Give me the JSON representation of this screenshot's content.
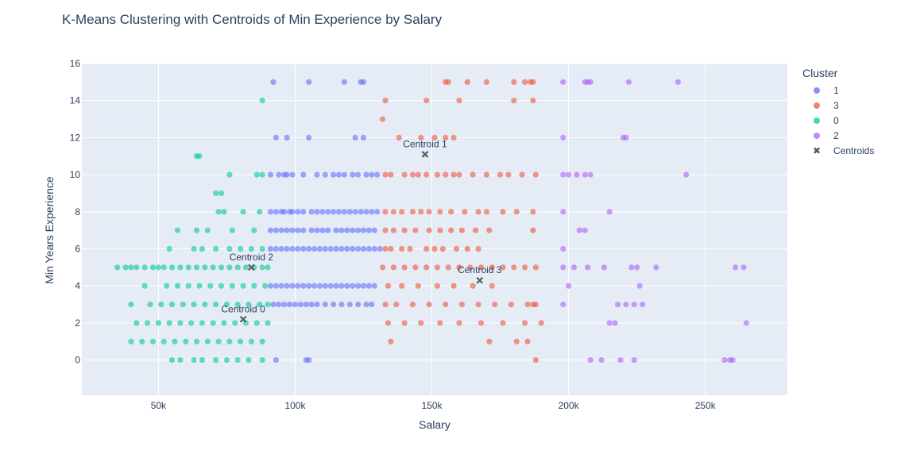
{
  "chart_data": {
    "type": "scatter",
    "title": "K-Means Clustering with Centroids of Min Experience by Salary",
    "xlabel": "Salary",
    "ylabel": "Min Years Experience",
    "xlim": [
      22000,
      280000
    ],
    "ylim": [
      -1.9,
      16
    ],
    "xticks": [
      50000,
      100000,
      150000,
      200000,
      250000
    ],
    "xtick_labels": [
      "50k",
      "100k",
      "150k",
      "200k",
      "250k"
    ],
    "yticks": [
      0,
      2,
      4,
      6,
      8,
      10,
      12,
      14,
      16
    ],
    "ytick_labels": [
      "0",
      "2",
      "4",
      "6",
      "8",
      "10",
      "12",
      "14",
      "16"
    ],
    "grid": true,
    "legend_title": "Cluster",
    "legend_position": "right",
    "series": [
      {
        "name": "1",
        "color": "#636efa",
        "x": [
          92000,
          105000,
          118000,
          124000,
          125000,
          93000,
          97000,
          105000,
          122000,
          125000,
          91000,
          94000,
          96000,
          97000,
          99000,
          103000,
          108000,
          111000,
          114000,
          116000,
          118000,
          121000,
          123000,
          126000,
          128000,
          130000,
          91000,
          93000,
          95000,
          96000,
          98000,
          99000,
          101000,
          103000,
          106000,
          108000,
          110000,
          112000,
          114000,
          116000,
          118000,
          120000,
          122000,
          124000,
          126000,
          128000,
          130000,
          91000,
          93000,
          95000,
          97000,
          99000,
          101000,
          103000,
          106000,
          108000,
          110000,
          112000,
          115000,
          117000,
          119000,
          121000,
          123000,
          125000,
          127000,
          129000,
          91000,
          93000,
          95000,
          97000,
          99000,
          101000,
          103000,
          105000,
          107000,
          109000,
          111000,
          113000,
          115000,
          117000,
          119000,
          121000,
          123000,
          125000,
          127000,
          129000,
          131000,
          91000,
          93000,
          95000,
          97000,
          99000,
          101000,
          103000,
          105000,
          107000,
          109000,
          111000,
          113000,
          115000,
          117000,
          119000,
          121000,
          123000,
          125000,
          127000,
          129000,
          92000,
          94000,
          96000,
          98000,
          100000,
          102000,
          104000,
          106000,
          108000,
          111000,
          114000,
          117000,
          120000,
          123000,
          126000,
          128000,
          93000,
          104000,
          105000
        ],
        "y": [
          15,
          15,
          15,
          15,
          15,
          12,
          12,
          12,
          12,
          12,
          10,
          10,
          10,
          10,
          10,
          10,
          10,
          10,
          10,
          10,
          10,
          10,
          10,
          10,
          10,
          10,
          8,
          8,
          8,
          8,
          8,
          8,
          8,
          8,
          8,
          8,
          8,
          8,
          8,
          8,
          8,
          8,
          8,
          8,
          8,
          8,
          8,
          7,
          7,
          7,
          7,
          7,
          7,
          7,
          7,
          7,
          7,
          7,
          7,
          7,
          7,
          7,
          7,
          7,
          7,
          7,
          6,
          6,
          6,
          6,
          6,
          6,
          6,
          6,
          6,
          6,
          6,
          6,
          6,
          6,
          6,
          6,
          6,
          6,
          6,
          6,
          6,
          4,
          4,
          4,
          4,
          4,
          4,
          4,
          4,
          4,
          4,
          4,
          4,
          4,
          4,
          4,
          4,
          4,
          4,
          4,
          4,
          3,
          3,
          3,
          3,
          3,
          3,
          3,
          3,
          3,
          3,
          3,
          3,
          3,
          3,
          3,
          3,
          0,
          0,
          0
        ]
      },
      {
        "name": "3",
        "color": "#ef553b",
        "x": [
          155000,
          156000,
          163000,
          170000,
          180000,
          184000,
          186000,
          187000,
          133000,
          148000,
          160000,
          180000,
          187000,
          132000,
          138000,
          146000,
          151000,
          155000,
          158000,
          133000,
          135000,
          140000,
          143000,
          145000,
          148000,
          152000,
          155000,
          158000,
          160000,
          165000,
          170000,
          175000,
          178000,
          183000,
          188000,
          133000,
          136000,
          139000,
          143000,
          146000,
          149000,
          153000,
          157000,
          162000,
          167000,
          170000,
          176000,
          181000,
          187000,
          133000,
          136000,
          140000,
          144000,
          149000,
          153000,
          157000,
          161000,
          166000,
          171000,
          187000,
          133000,
          135000,
          139000,
          142000,
          148000,
          151000,
          154000,
          159000,
          163000,
          167000,
          132000,
          136000,
          140000,
          144000,
          148000,
          152000,
          156000,
          160000,
          164000,
          168000,
          172000,
          176000,
          180000,
          184000,
          188000,
          134000,
          139000,
          145000,
          152000,
          158000,
          165000,
          172000,
          133000,
          137000,
          143000,
          149000,
          155000,
          161000,
          167000,
          173000,
          179000,
          185000,
          187000,
          188000,
          134000,
          140000,
          146000,
          153000,
          160000,
          168000,
          176000,
          184000,
          190000,
          135000,
          171000,
          181000,
          185000,
          188000
        ],
        "y": [
          15,
          15,
          15,
          15,
          15,
          15,
          15,
          15,
          14,
          14,
          14,
          14,
          14,
          13,
          12,
          12,
          12,
          12,
          12,
          10,
          10,
          10,
          10,
          10,
          10,
          10,
          10,
          10,
          10,
          10,
          10,
          10,
          10,
          10,
          10,
          8,
          8,
          8,
          8,
          8,
          8,
          8,
          8,
          8,
          8,
          8,
          8,
          8,
          8,
          7,
          7,
          7,
          7,
          7,
          7,
          7,
          7,
          7,
          7,
          7,
          6,
          6,
          6,
          6,
          6,
          6,
          6,
          6,
          6,
          6,
          5,
          5,
          5,
          5,
          5,
          5,
          5,
          5,
          5,
          5,
          5,
          5,
          5,
          5,
          5,
          4,
          4,
          4,
          4,
          4,
          4,
          4,
          3,
          3,
          3,
          3,
          3,
          3,
          3,
          3,
          3,
          3,
          3,
          3,
          2,
          2,
          2,
          2,
          2,
          2,
          2,
          2,
          2,
          1,
          1,
          1,
          1,
          0
        ]
      },
      {
        "name": "0",
        "color": "#00cc96",
        "x": [
          88000,
          64000,
          65000,
          76000,
          86000,
          88000,
          71000,
          73000,
          72000,
          74000,
          81000,
          87000,
          57000,
          64000,
          68000,
          77000,
          85000,
          54000,
          63000,
          66000,
          71000,
          76000,
          80000,
          84000,
          88000,
          35000,
          38000,
          40000,
          42000,
          45000,
          48000,
          50000,
          52000,
          55000,
          58000,
          61000,
          64000,
          67000,
          70000,
          73000,
          76000,
          79000,
          82000,
          85000,
          88000,
          90000,
          45000,
          53000,
          57000,
          61000,
          65000,
          69000,
          73000,
          77000,
          81000,
          85000,
          89000,
          40000,
          47000,
          51000,
          55000,
          59000,
          63000,
          67000,
          71000,
          75000,
          79000,
          83000,
          87000,
          90000,
          42000,
          46000,
          50000,
          54000,
          58000,
          62000,
          66000,
          70000,
          74000,
          78000,
          82000,
          86000,
          90000,
          40000,
          44000,
          48000,
          52000,
          56000,
          60000,
          64000,
          68000,
          72000,
          76000,
          80000,
          84000,
          88000,
          55000,
          58000,
          63000,
          66000,
          71000,
          75000,
          79000,
          83000,
          88000
        ],
        "y": [
          14,
          11,
          11,
          10,
          10,
          10,
          9,
          9,
          8,
          8,
          8,
          8,
          7,
          7,
          7,
          7,
          7,
          6,
          6,
          6,
          6,
          6,
          6,
          6,
          6,
          5,
          5,
          5,
          5,
          5,
          5,
          5,
          5,
          5,
          5,
          5,
          5,
          5,
          5,
          5,
          5,
          5,
          5,
          5,
          5,
          5,
          4,
          4,
          4,
          4,
          4,
          4,
          4,
          4,
          4,
          4,
          4,
          3,
          3,
          3,
          3,
          3,
          3,
          3,
          3,
          3,
          3,
          3,
          3,
          3,
          2,
          2,
          2,
          2,
          2,
          2,
          2,
          2,
          2,
          2,
          2,
          2,
          2,
          1,
          1,
          1,
          1,
          1,
          1,
          1,
          1,
          1,
          1,
          1,
          1,
          1,
          0,
          0,
          0,
          0,
          0,
          0,
          0,
          0,
          0
        ]
      },
      {
        "name": "2",
        "color": "#ab63fa",
        "x": [
          198000,
          206000,
          207000,
          208000,
          222000,
          240000,
          198000,
          220000,
          221000,
          198000,
          200000,
          203000,
          206000,
          208000,
          243000,
          198000,
          215000,
          204000,
          206000,
          198000,
          198000,
          202000,
          207000,
          213000,
          223000,
          225000,
          232000,
          261000,
          264000,
          200000,
          226000,
          198000,
          218000,
          221000,
          224000,
          227000,
          215000,
          217000,
          265000,
          208000,
          212000,
          219000,
          224000,
          257000,
          259000,
          260000
        ],
        "y": [
          15,
          15,
          15,
          15,
          15,
          15,
          12,
          12,
          12,
          10,
          10,
          10,
          10,
          10,
          10,
          8,
          8,
          7,
          7,
          6,
          5,
          5,
          5,
          5,
          5,
          5,
          5,
          5,
          5,
          4,
          4,
          3,
          3,
          3,
          3,
          3,
          2,
          2,
          2,
          0,
          0,
          0,
          0,
          0,
          0,
          0
        ]
      }
    ],
    "centroids": {
      "name": "Centroids",
      "color": "#5a5a5a",
      "marker": "x",
      "points": [
        {
          "label": "Centroid 0",
          "x": 81000,
          "y": 2.2
        },
        {
          "label": "Centroid 1",
          "x": 147500,
          "y": 11.1
        },
        {
          "label": "Centroid 2",
          "x": 84000,
          "y": 5.0
        },
        {
          "label": "Centroid 3",
          "x": 167500,
          "y": 4.3
        }
      ]
    }
  },
  "legend": {
    "title": "Cluster",
    "items": [
      {
        "label": "1",
        "color": "#636efa",
        "kind": "dot"
      },
      {
        "label": "3",
        "color": "#ef553b",
        "kind": "dot"
      },
      {
        "label": "0",
        "color": "#00cc96",
        "kind": "dot"
      },
      {
        "label": "2",
        "color": "#ab63fa",
        "kind": "dot"
      },
      {
        "label": "Centroids",
        "color": "#5a5a5a",
        "kind": "x"
      }
    ]
  }
}
